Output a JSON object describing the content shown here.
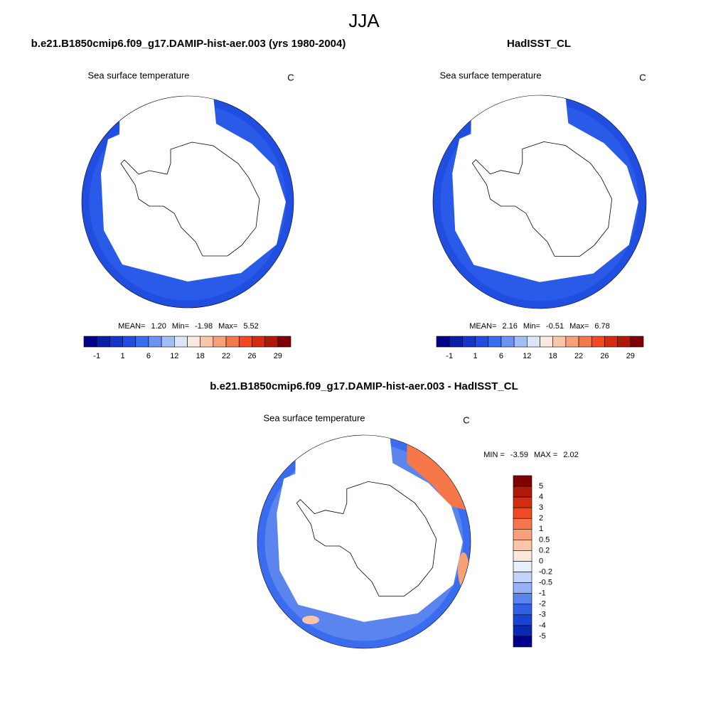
{
  "title": "JJA",
  "panels": [
    {
      "title": "b.e21.B1850cmip6.f09_g17.DAMIP-hist-aer.003 (yrs 1980-2004)",
      "variable": "Sea surface temperature",
      "units": "C",
      "stats": [
        {
          "label": "MEAN=",
          "value": "1.20"
        },
        {
          "label": "Min=",
          "value": "-1.98"
        },
        {
          "label": "Max=",
          "value": "5.52"
        }
      ]
    },
    {
      "title": "HadISST_CL",
      "variable": "Sea surface temperature",
      "units": "C",
      "stats": [
        {
          "label": "MEAN=",
          "value": "2.16"
        },
        {
          "label": "Min=",
          "value": "-0.51"
        },
        {
          "label": "Max=",
          "value": "6.78"
        }
      ]
    }
  ],
  "colorbar": {
    "labels": [
      "-1",
      "1",
      "6",
      "12",
      "18",
      "22",
      "26",
      "29"
    ],
    "colors": [
      "#00008b",
      "#0a1fa8",
      "#1436c8",
      "#1f4ee0",
      "#3a6cf0",
      "#6c93f5",
      "#a3bdf8",
      "#dbe6fb",
      "#fde8dc",
      "#fbc6a8",
      "#f8a078",
      "#f6784a",
      "#f04a22",
      "#d42c10",
      "#b01808",
      "#800000"
    ]
  },
  "difference": {
    "title": "b.e21.B1850cmip6.f09_g17.DAMIP-hist-aer.003 - HadISST_CL",
    "variable": "Sea surface temperature",
    "units": "C",
    "stats": [
      {
        "label": "MIN =",
        "value": "-3.59"
      },
      {
        "label": "MAX =",
        "value": "2.02"
      }
    ],
    "colorbar": {
      "labels": [
        "5",
        "4",
        "3",
        "2",
        "1",
        "0.5",
        "0.2",
        "0",
        "-0.2",
        "-0.5",
        "-1",
        "-2",
        "-3",
        "-4",
        "-5"
      ],
      "colors": [
        "#800000",
        "#b01808",
        "#d42c10",
        "#f04a22",
        "#f6784a",
        "#f8a078",
        "#fbc6a8",
        "#fde8dc",
        "#e8eefb",
        "#c2d4f8",
        "#94b2f4",
        "#5a85ee",
        "#3260e4",
        "#1a44d0",
        "#0a28b0",
        "#00008b"
      ]
    }
  }
}
